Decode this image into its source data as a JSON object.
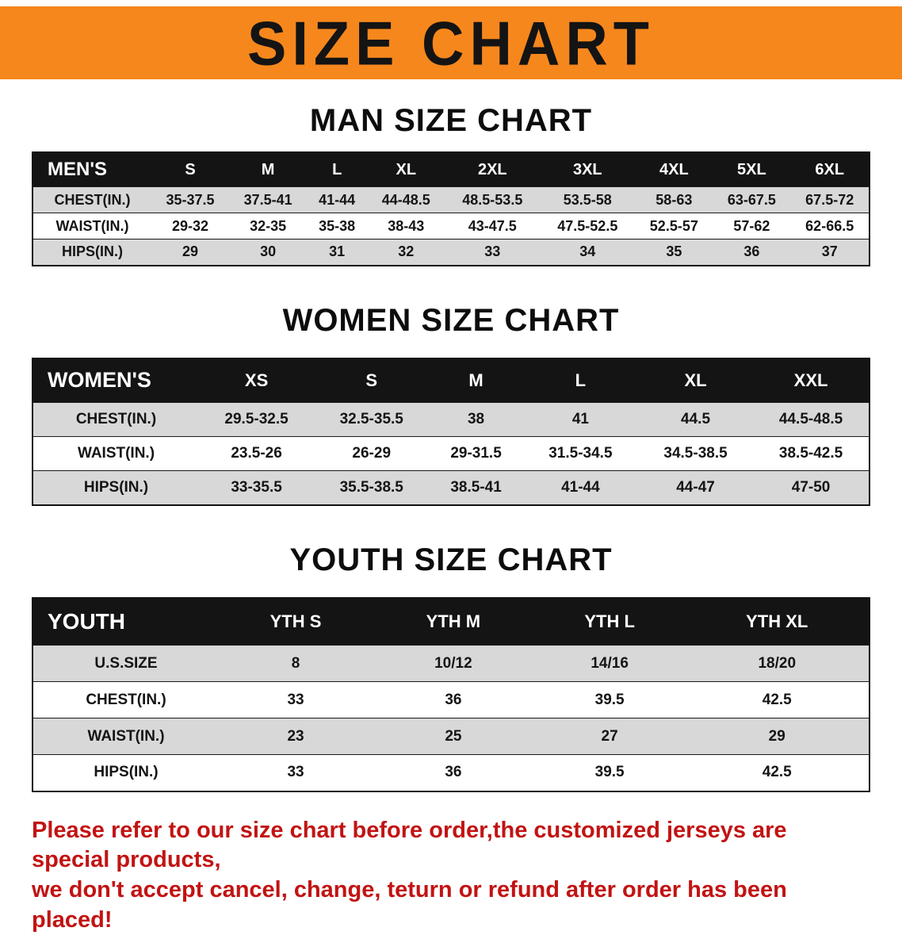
{
  "banner": {
    "title": "SIZE CHART",
    "bg_color": "#f6871d"
  },
  "men": {
    "heading": "MAN SIZE CHART",
    "header": [
      "MEN'S",
      "S",
      "M",
      "L",
      "XL",
      "2XL",
      "3XL",
      "4XL",
      "5XL",
      "6XL"
    ],
    "rows": [
      [
        "CHEST(IN.)",
        "35-37.5",
        "37.5-41",
        "41-44",
        "44-48.5",
        "48.5-53.5",
        "53.5-58",
        "58-63",
        "63-67.5",
        "67.5-72"
      ],
      [
        "WAIST(IN.)",
        "29-32",
        "32-35",
        "35-38",
        "38-43",
        "43-47.5",
        "47.5-52.5",
        "52.5-57",
        "57-62",
        "62-66.5"
      ],
      [
        "HIPS(IN.)",
        "29",
        "30",
        "31",
        "32",
        "33",
        "34",
        "35",
        "36",
        "37"
      ]
    ]
  },
  "women": {
    "heading": "WOMEN SIZE CHART",
    "header": [
      "WOMEN'S",
      "XS",
      "S",
      "M",
      "L",
      "XL",
      "XXL"
    ],
    "rows": [
      [
        "CHEST(IN.)",
        "29.5-32.5",
        "32.5-35.5",
        "38",
        "41",
        "44.5",
        "44.5-48.5"
      ],
      [
        "WAIST(IN.)",
        "23.5-26",
        "26-29",
        "29-31.5",
        "31.5-34.5",
        "34.5-38.5",
        "38.5-42.5"
      ],
      [
        "HIPS(IN.)",
        "33-35.5",
        "35.5-38.5",
        "38.5-41",
        "41-44",
        "44-47",
        "47-50"
      ]
    ]
  },
  "youth": {
    "heading": "YOUTH SIZE CHART",
    "header": [
      "YOUTH",
      "YTH S",
      "YTH M",
      "YTH L",
      "YTH XL"
    ],
    "rows": [
      [
        "U.S.SIZE",
        "8",
        "10/12",
        "14/16",
        "18/20"
      ],
      [
        "CHEST(IN.)",
        "33",
        "36",
        "39.5",
        "42.5"
      ],
      [
        "WAIST(IN.)",
        "23",
        "25",
        "27",
        "29"
      ],
      [
        "HIPS(IN.)",
        "33",
        "36",
        "39.5",
        "42.5"
      ]
    ]
  },
  "disclaimer": {
    "line1": "Please refer to our size chart before order,the customized jerseys are special products,",
    "line2": "we don't accept cancel, change, teturn or refund after order has been placed!",
    "color": "#c21313"
  }
}
